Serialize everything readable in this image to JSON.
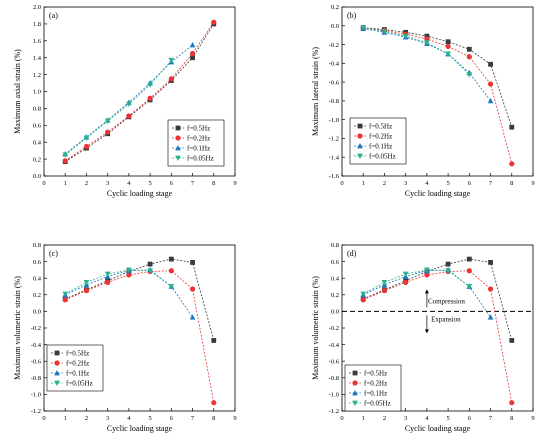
{
  "series_styles": [
    {
      "color": "#3a3a3a",
      "marker": "square"
    },
    {
      "color": "#ee3333",
      "marker": "circle"
    },
    {
      "color": "#1a78c2",
      "marker": "triangle-up"
    },
    {
      "color": "#2ab38a",
      "marker": "triangle-down"
    }
  ],
  "chart_data": [
    {
      "type": "line",
      "panel": "(a)",
      "xlabel": "Cyclic loading stage",
      "ylabel": "Maximum axial strain (%)",
      "xlim": [
        0,
        9
      ],
      "ylim": [
        0.0,
        2.0
      ],
      "xticks": [
        "0",
        "1",
        "2",
        "3",
        "4",
        "5",
        "6",
        "7",
        "8",
        "9"
      ],
      "yticks": [
        "0.0",
        "0.2",
        "0.4",
        "0.6",
        "0.8",
        "1.0",
        "1.2",
        "1.4",
        "1.6",
        "1.8",
        "2.0"
      ],
      "legend_position": "bottom-right",
      "series": [
        {
          "name": "f=0.5Hz",
          "x": [
            1,
            2,
            3,
            4,
            5,
            6,
            7,
            8
          ],
          "y": [
            0.17,
            0.33,
            0.5,
            0.7,
            0.9,
            1.13,
            1.4,
            1.8
          ]
        },
        {
          "name": "f=0.2Hz",
          "x": [
            1,
            2,
            3,
            4,
            5,
            6,
            7,
            8
          ],
          "y": [
            0.18,
            0.35,
            0.52,
            0.71,
            0.92,
            1.15,
            1.45,
            1.82
          ]
        },
        {
          "name": "f=0.1Hz",
          "x": [
            1,
            2,
            3,
            4,
            5,
            6,
            7
          ],
          "y": [
            0.26,
            0.46,
            0.66,
            0.87,
            1.1,
            1.35,
            1.55
          ]
        },
        {
          "name": "f=0.05Hz",
          "x": [
            1,
            2,
            3,
            4,
            5,
            6
          ],
          "y": [
            0.25,
            0.45,
            0.65,
            0.85,
            1.08,
            1.37
          ]
        }
      ]
    },
    {
      "type": "line",
      "panel": "(b)",
      "xlabel": "Cyclic loading stage",
      "ylabel": "Maximum lateral strain (%)",
      "xlim": [
        0,
        9
      ],
      "ylim": [
        -1.6,
        0.2
      ],
      "xticks": [
        "0",
        "1",
        "2",
        "3",
        "4",
        "5",
        "6",
        "7",
        "8",
        "9"
      ],
      "yticks": [
        "-1.6",
        "-1.4",
        "-1.2",
        "-1.0",
        "-0.8",
        "-0.6",
        "-0.4",
        "-0.2",
        "0.0",
        "0.2"
      ],
      "legend_position": "bottom-left",
      "series": [
        {
          "name": "f=0.5Hz",
          "x": [
            1,
            2,
            3,
            4,
            5,
            6,
            7,
            8
          ],
          "y": [
            -0.02,
            -0.04,
            -0.07,
            -0.11,
            -0.17,
            -0.25,
            -0.41,
            -1.08
          ]
        },
        {
          "name": "f=0.2Hz",
          "x": [
            1,
            2,
            3,
            4,
            5,
            6,
            7,
            8
          ],
          "y": [
            -0.02,
            -0.05,
            -0.09,
            -0.14,
            -0.22,
            -0.33,
            -0.62,
            -1.47
          ]
        },
        {
          "name": "f=0.1Hz",
          "x": [
            1,
            2,
            3,
            4,
            5,
            6,
            7
          ],
          "y": [
            -0.03,
            -0.07,
            -0.12,
            -0.19,
            -0.3,
            -0.5,
            -0.8
          ]
        },
        {
          "name": "f=0.05Hz",
          "x": [
            1,
            2,
            3,
            4,
            5,
            6
          ],
          "y": [
            -0.02,
            -0.06,
            -0.11,
            -0.18,
            -0.3,
            -0.52
          ]
        }
      ]
    },
    {
      "type": "line",
      "panel": "(c)",
      "xlabel": "Cyclic loading stage",
      "ylabel": "Maximum volumetric strain (%)",
      "xlim": [
        0,
        9
      ],
      "ylim": [
        -1.2,
        0.8
      ],
      "xticks": [
        "0",
        "1",
        "2",
        "3",
        "4",
        "5",
        "6",
        "7",
        "8",
        "9"
      ],
      "yticks": [
        "-1.2",
        "-1.0",
        "-0.8",
        "-0.6",
        "-0.4",
        "-0.2",
        "0.0",
        "0.2",
        "0.4",
        "0.6",
        "0.8"
      ],
      "legend_position": "bottom-left",
      "series": [
        {
          "name": "f=0.5Hz",
          "x": [
            1,
            2,
            3,
            4,
            5,
            6,
            7,
            8
          ],
          "y": [
            0.15,
            0.26,
            0.37,
            0.48,
            0.57,
            0.63,
            0.59,
            -0.35
          ]
        },
        {
          "name": "f=0.2Hz",
          "x": [
            1,
            2,
            3,
            4,
            5,
            6,
            7,
            8
          ],
          "y": [
            0.14,
            0.25,
            0.35,
            0.44,
            0.48,
            0.49,
            0.27,
            -1.1
          ]
        },
        {
          "name": "f=0.1Hz",
          "x": [
            1,
            2,
            3,
            4,
            5,
            6,
            7
          ],
          "y": [
            0.2,
            0.32,
            0.42,
            0.49,
            0.5,
            0.3,
            -0.07
          ]
        },
        {
          "name": "f=0.05Hz",
          "x": [
            1,
            2,
            3,
            4,
            5,
            6
          ],
          "y": [
            0.21,
            0.35,
            0.45,
            0.5,
            0.49,
            0.3
          ]
        }
      ]
    },
    {
      "type": "line",
      "panel": "(d)",
      "xlabel": "Cyclic loading stage",
      "ylabel": "Maximum volumetric strain (%)",
      "xlim": [
        0,
        9
      ],
      "ylim": [
        -1.2,
        0.8
      ],
      "xticks": [
        "0",
        "1",
        "2",
        "3",
        "4",
        "5",
        "6",
        "7",
        "8",
        "9"
      ],
      "yticks": [
        "-1.2",
        "-1.0",
        "-0.8",
        "-0.6",
        "-0.4",
        "-0.2",
        "0.0",
        "0.2",
        "0.4",
        "0.6",
        "0.8"
      ],
      "legend_position": "bottom-left",
      "annotations": [
        {
          "text": "Compression",
          "x": 4.05,
          "y": 0.12
        },
        {
          "text": "Expansion",
          "x": 4.2,
          "y": -0.1
        }
      ],
      "reference_line_y": 0.0,
      "series": [
        {
          "name": "f=0.5Hz",
          "x": [
            1,
            2,
            3,
            4,
            5,
            6,
            7,
            8
          ],
          "y": [
            0.15,
            0.26,
            0.37,
            0.48,
            0.57,
            0.63,
            0.59,
            -0.35
          ]
        },
        {
          "name": "f=0.2Hz",
          "x": [
            1,
            2,
            3,
            4,
            5,
            6,
            7,
            8
          ],
          "y": [
            0.14,
            0.25,
            0.35,
            0.44,
            0.48,
            0.49,
            0.27,
            -1.1
          ]
        },
        {
          "name": "f=0.1Hz",
          "x": [
            1,
            2,
            3,
            4,
            5,
            6,
            7
          ],
          "y": [
            0.2,
            0.32,
            0.42,
            0.49,
            0.5,
            0.3,
            -0.07
          ]
        },
        {
          "name": "f=0.05Hz",
          "x": [
            1,
            2,
            3,
            4,
            5,
            6
          ],
          "y": [
            0.21,
            0.35,
            0.45,
            0.5,
            0.49,
            0.3
          ]
        }
      ]
    }
  ]
}
